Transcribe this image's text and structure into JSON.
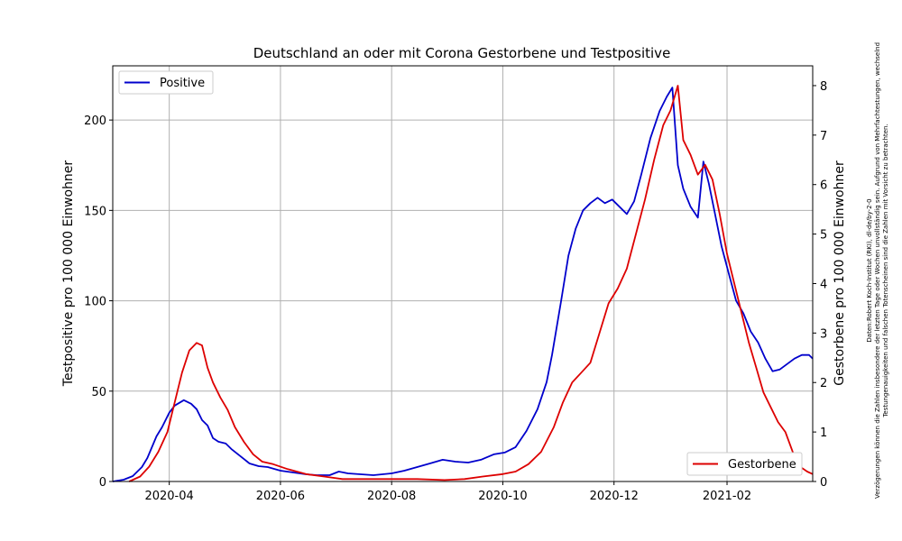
{
  "chart_data": {
    "type": "line",
    "title": "Deutschland an oder mit Corona Gestorbene und Testpositive",
    "x_ticks": [
      "2020-04",
      "2020-06",
      "2020-08",
      "2020-10",
      "2020-12",
      "2021-02"
    ],
    "grid": true,
    "left_axis": {
      "label": "Testpositive pro 100 000 Einwohner",
      "ylim": [
        0,
        230
      ],
      "ticks": [
        "0",
        "50",
        "100",
        "150",
        "200"
      ]
    },
    "right_axis": {
      "label": "Gestorbene pro 100 000 Einwohner",
      "ylim": [
        0,
        8.4
      ],
      "ticks": [
        "0",
        "1",
        "2",
        "3",
        "4",
        "5",
        "6",
        "7",
        "8"
      ]
    },
    "series": [
      {
        "name": "Positive",
        "color": "#0000cc",
        "axis": "left",
        "legend_position": "upper-left",
        "points": [
          [
            "2020-03-01",
            0
          ],
          [
            "2020-03-07",
            1
          ],
          [
            "2020-03-12",
            3
          ],
          [
            "2020-03-17",
            8
          ],
          [
            "2020-03-20",
            13
          ],
          [
            "2020-03-25",
            25
          ],
          [
            "2020-03-28",
            30
          ],
          [
            "2020-04-01",
            38
          ],
          [
            "2020-04-04",
            42
          ],
          [
            "2020-04-09",
            45
          ],
          [
            "2020-04-13",
            43
          ],
          [
            "2020-04-16",
            40
          ],
          [
            "2020-04-19",
            34
          ],
          [
            "2020-04-22",
            31
          ],
          [
            "2020-04-25",
            24
          ],
          [
            "2020-04-28",
            22
          ],
          [
            "2020-05-02",
            21
          ],
          [
            "2020-05-05",
            18
          ],
          [
            "2020-05-10",
            14
          ],
          [
            "2020-05-15",
            10
          ],
          [
            "2020-05-20",
            8.5
          ],
          [
            "2020-05-25",
            8
          ],
          [
            "2020-06-01",
            6
          ],
          [
            "2020-06-08",
            5
          ],
          [
            "2020-06-15",
            4
          ],
          [
            "2020-06-21",
            3.5
          ],
          [
            "2020-06-28",
            3.5
          ],
          [
            "2020-07-03",
            5.5
          ],
          [
            "2020-07-08",
            4.5
          ],
          [
            "2020-07-15",
            4
          ],
          [
            "2020-07-22",
            3.5
          ],
          [
            "2020-08-01",
            4.5
          ],
          [
            "2020-08-08",
            6
          ],
          [
            "2020-08-15",
            8
          ],
          [
            "2020-08-22",
            10
          ],
          [
            "2020-08-29",
            12
          ],
          [
            "2020-09-05",
            11
          ],
          [
            "2020-09-12",
            10.5
          ],
          [
            "2020-09-19",
            12
          ],
          [
            "2020-09-26",
            15
          ],
          [
            "2020-10-02",
            16
          ],
          [
            "2020-10-08",
            19
          ],
          [
            "2020-10-14",
            28
          ],
          [
            "2020-10-20",
            40
          ],
          [
            "2020-10-25",
            55
          ],
          [
            "2020-10-28",
            70
          ],
          [
            "2020-11-02",
            100
          ],
          [
            "2020-11-06",
            125
          ],
          [
            "2020-11-10",
            140
          ],
          [
            "2020-11-14",
            150
          ],
          [
            "2020-11-18",
            154
          ],
          [
            "2020-11-22",
            157
          ],
          [
            "2020-11-26",
            154
          ],
          [
            "2020-11-30",
            156
          ],
          [
            "2020-12-04",
            152
          ],
          [
            "2020-12-08",
            148
          ],
          [
            "2020-12-12",
            155
          ],
          [
            "2020-12-16",
            170
          ],
          [
            "2020-12-21",
            190
          ],
          [
            "2020-12-26",
            205
          ],
          [
            "2020-12-30",
            213
          ],
          [
            "2021-01-02",
            218
          ],
          [
            "2021-01-05",
            175
          ],
          [
            "2021-01-08",
            162
          ],
          [
            "2021-01-12",
            152
          ],
          [
            "2021-01-16",
            146
          ],
          [
            "2021-01-19",
            177
          ],
          [
            "2021-01-22",
            165
          ],
          [
            "2021-01-25",
            150
          ],
          [
            "2021-01-29",
            130
          ],
          [
            "2021-02-02",
            115
          ],
          [
            "2021-02-06",
            100
          ],
          [
            "2021-02-10",
            93
          ],
          [
            "2021-02-14",
            83
          ],
          [
            "2021-02-18",
            77
          ],
          [
            "2021-02-22",
            68
          ],
          [
            "2021-02-26",
            61
          ],
          [
            "2021-03-02",
            62
          ],
          [
            "2021-03-06",
            65
          ],
          [
            "2021-03-10",
            68
          ],
          [
            "2021-03-14",
            70
          ],
          [
            "2021-03-18",
            70
          ],
          [
            "2021-03-20",
            68
          ]
        ]
      },
      {
        "name": "Gestorbene",
        "color": "#dd0000",
        "axis": "right",
        "legend_position": "lower-right",
        "points": [
          [
            "2020-03-10",
            0
          ],
          [
            "2020-03-16",
            0.1
          ],
          [
            "2020-03-21",
            0.3
          ],
          [
            "2020-03-26",
            0.6
          ],
          [
            "2020-03-31",
            1.0
          ],
          [
            "2020-04-04",
            1.6
          ],
          [
            "2020-04-08",
            2.2
          ],
          [
            "2020-04-12",
            2.65
          ],
          [
            "2020-04-16",
            2.8
          ],
          [
            "2020-04-19",
            2.75
          ],
          [
            "2020-04-22",
            2.3
          ],
          [
            "2020-04-25",
            2.0
          ],
          [
            "2020-04-29",
            1.7
          ],
          [
            "2020-05-03",
            1.45
          ],
          [
            "2020-05-07",
            1.1
          ],
          [
            "2020-05-12",
            0.8
          ],
          [
            "2020-05-17",
            0.55
          ],
          [
            "2020-05-22",
            0.4
          ],
          [
            "2020-05-28",
            0.35
          ],
          [
            "2020-06-05",
            0.25
          ],
          [
            "2020-06-15",
            0.15
          ],
          [
            "2020-06-25",
            0.1
          ],
          [
            "2020-07-05",
            0.05
          ],
          [
            "2020-07-20",
            0.05
          ],
          [
            "2020-08-01",
            0.05
          ],
          [
            "2020-08-15",
            0.05
          ],
          [
            "2020-08-30",
            0.03
          ],
          [
            "2020-09-10",
            0.05
          ],
          [
            "2020-09-20",
            0.1
          ],
          [
            "2020-10-01",
            0.15
          ],
          [
            "2020-10-08",
            0.2
          ],
          [
            "2020-10-15",
            0.35
          ],
          [
            "2020-10-22",
            0.6
          ],
          [
            "2020-10-29",
            1.1
          ],
          [
            "2020-11-03",
            1.6
          ],
          [
            "2020-11-08",
            2.0
          ],
          [
            "2020-11-13",
            2.2
          ],
          [
            "2020-11-18",
            2.4
          ],
          [
            "2020-11-23",
            3.0
          ],
          [
            "2020-11-28",
            3.6
          ],
          [
            "2020-12-03",
            3.9
          ],
          [
            "2020-12-08",
            4.3
          ],
          [
            "2020-12-13",
            5.0
          ],
          [
            "2020-12-18",
            5.7
          ],
          [
            "2020-12-23",
            6.5
          ],
          [
            "2020-12-28",
            7.2
          ],
          [
            "2021-01-01",
            7.5
          ],
          [
            "2021-01-05",
            8.0
          ],
          [
            "2021-01-08",
            6.9
          ],
          [
            "2021-01-12",
            6.6
          ],
          [
            "2021-01-16",
            6.2
          ],
          [
            "2021-01-20",
            6.4
          ],
          [
            "2021-01-24",
            6.1
          ],
          [
            "2021-01-28",
            5.4
          ],
          [
            "2021-02-01",
            4.6
          ],
          [
            "2021-02-05",
            4.0
          ],
          [
            "2021-02-09",
            3.4
          ],
          [
            "2021-02-13",
            2.8
          ],
          [
            "2021-02-17",
            2.3
          ],
          [
            "2021-02-21",
            1.8
          ],
          [
            "2021-02-25",
            1.5
          ],
          [
            "2021-03-01",
            1.2
          ],
          [
            "2021-03-05",
            1.0
          ],
          [
            "2021-03-09",
            0.6
          ],
          [
            "2021-03-13",
            0.3
          ],
          [
            "2021-03-17",
            0.2
          ],
          [
            "2021-03-20",
            0.15
          ]
        ]
      }
    ]
  },
  "source_note": {
    "line1": "Daten:Robert Koch-Institut (RKI), dl-de/by-2-0",
    "line2": "Verzögerungen können die Zahlen insbesondere der letzten Tage oder Wochen unvollständig sein. Aufgrund von Mehrfachtestungen, wechselnd",
    "line3": "Testungenauigkeiten und falschen Totenscheinen sind die Zahlen mit Vorsicht zu betrachten."
  }
}
